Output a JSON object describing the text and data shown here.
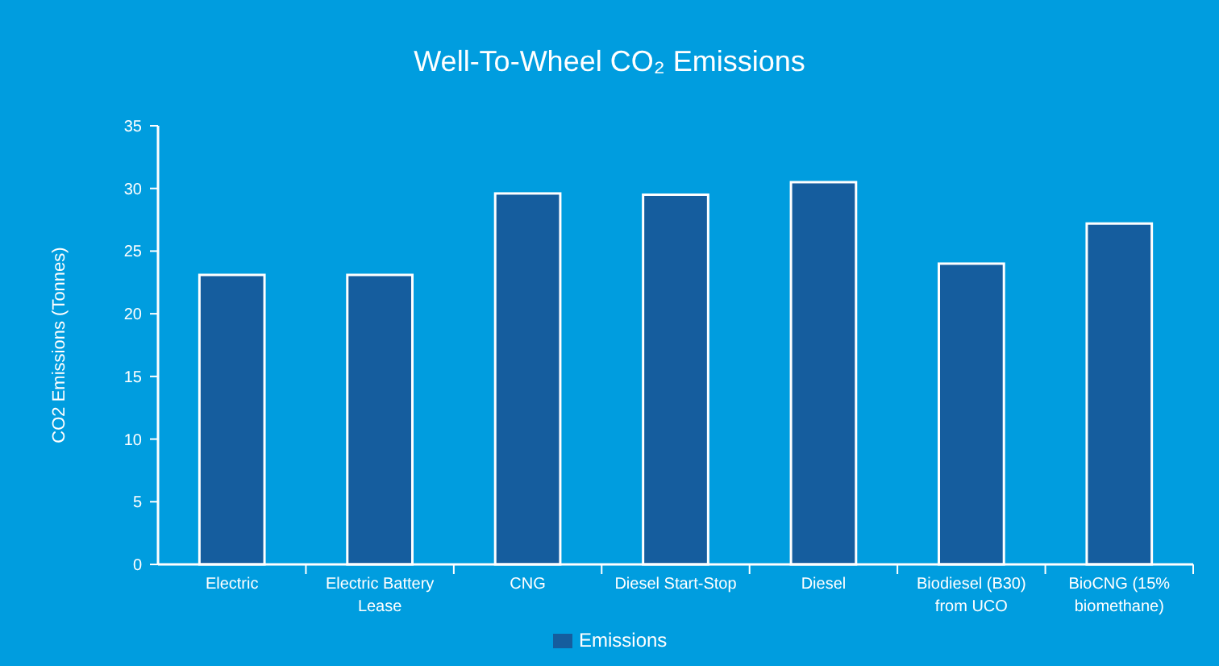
{
  "chart_data": {
    "type": "bar",
    "title": "Well-To-Wheel CO₂ Emissions",
    "ylabel": "CO2 Emissions (Tonnes)",
    "categories": [
      "Electric",
      "Electric Battery Lease",
      "CNG",
      "Diesel Start-Stop",
      "Diesel",
      "Biodiesel (B30) from UCO",
      "BioCNG (15% biomethane)"
    ],
    "series": [
      {
        "name": "Emissions",
        "color": "#155d9e",
        "values": [
          23.1,
          23.1,
          29.6,
          29.5,
          30.5,
          24.0,
          27.2
        ]
      }
    ],
    "ylim": [
      0,
      35
    ],
    "yticks": [
      0,
      5,
      10,
      15,
      20,
      25,
      30,
      35
    ],
    "grid": false,
    "legend": "bottom"
  }
}
